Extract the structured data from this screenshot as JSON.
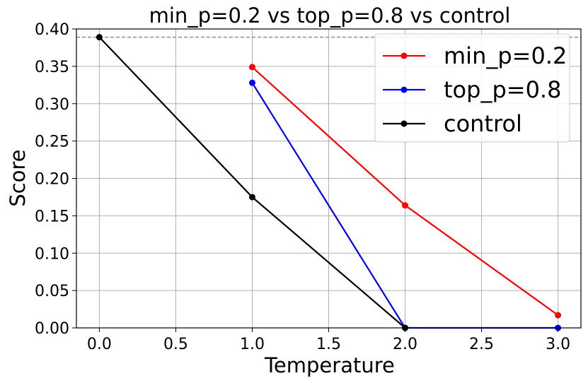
{
  "chart_data": {
    "type": "line",
    "title": "min_p=0.2 vs top_p=0.8 vs control",
    "xlabel": "Temperature",
    "ylabel": "Score",
    "xlim": [
      -0.15,
      3.15
    ],
    "ylim": [
      0.0,
      0.4
    ],
    "x_ticks": [
      "0.0",
      "0.5",
      "1.0",
      "1.5",
      "2.0",
      "2.5",
      "3.0"
    ],
    "y_ticks": [
      "0.00",
      "0.05",
      "0.10",
      "0.15",
      "0.20",
      "0.25",
      "0.30",
      "0.35",
      "0.40"
    ],
    "grid": true,
    "legend_position": "top-right",
    "reference_line": {
      "y": 0.389,
      "style": "dashed",
      "color": "#808080"
    },
    "series": [
      {
        "name": "min_p=0.2",
        "color": "#ff0000",
        "x": [
          1.0,
          2.0,
          3.0
        ],
        "y": [
          0.349,
          0.164,
          0.017
        ]
      },
      {
        "name": "top_p=0.8",
        "color": "#0000ff",
        "x": [
          1.0,
          2.0,
          3.0
        ],
        "y": [
          0.328,
          0.0,
          0.0
        ]
      },
      {
        "name": "control",
        "color": "#000000",
        "x": [
          0.0,
          1.0,
          2.0
        ],
        "y": [
          0.389,
          0.175,
          0.0
        ]
      }
    ]
  }
}
